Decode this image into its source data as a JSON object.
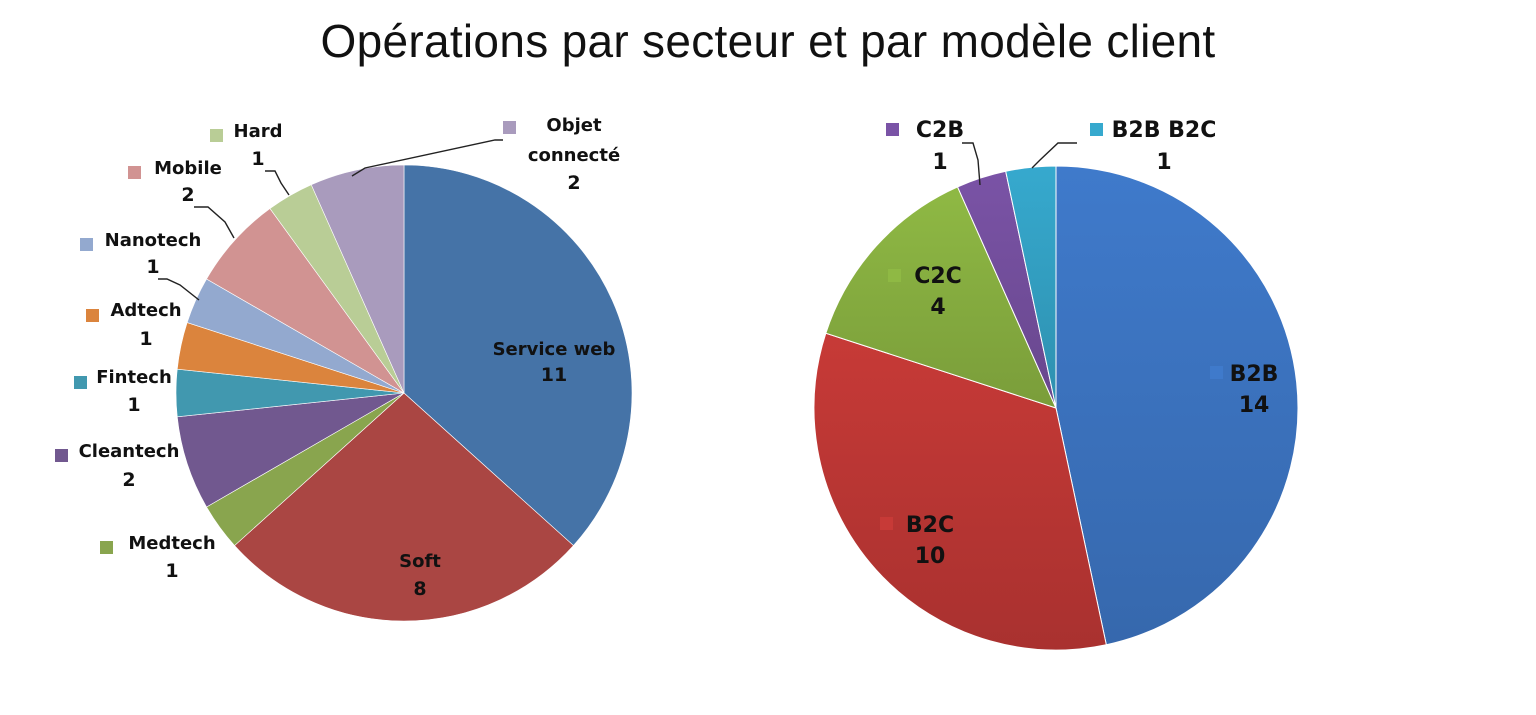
{
  "title": "Opérations par secteur et par modèle client",
  "chart_data": [
    {
      "type": "pie",
      "title": "",
      "start_angle_deg": 0,
      "direction": "clockwise",
      "slices": [
        {
          "label": "Service web",
          "value": 11,
          "color": "#4573a7"
        },
        {
          "label": "Soft",
          "value": 8,
          "color": "#aa4643"
        },
        {
          "label": "Medtech",
          "value": 1,
          "color": "#89a54e"
        },
        {
          "label": "Cleantech",
          "value": 2,
          "color": "#71588f"
        },
        {
          "label": "Fintech",
          "value": 1,
          "color": "#4198af"
        },
        {
          "label": "Adtech",
          "value": 1,
          "color": "#db843d"
        },
        {
          "label": "Nanotech",
          "value": 1,
          "color": "#93a9cf"
        },
        {
          "label": "Mobile",
          "value": 2,
          "color": "#d19392"
        },
        {
          "label": "Hard",
          "value": 1,
          "color": "#b9cd96"
        },
        {
          "label": "Objet connecté",
          "value": 2,
          "color": "#a99bbd"
        }
      ]
    },
    {
      "type": "pie",
      "title": "",
      "start_angle_deg": 0,
      "direction": "clockwise",
      "slices": [
        {
          "label": "B2B",
          "value": 14,
          "color": "#3f7acb"
        },
        {
          "label": "B2C",
          "value": 10,
          "color": "#c73a37"
        },
        {
          "label": "C2C",
          "value": 4,
          "color": "#8fb944"
        },
        {
          "label": "C2B",
          "value": 1,
          "color": "#7a53a6"
        },
        {
          "label": "B2B B2C",
          "value": 1,
          "color": "#36a9ce"
        }
      ]
    }
  ]
}
